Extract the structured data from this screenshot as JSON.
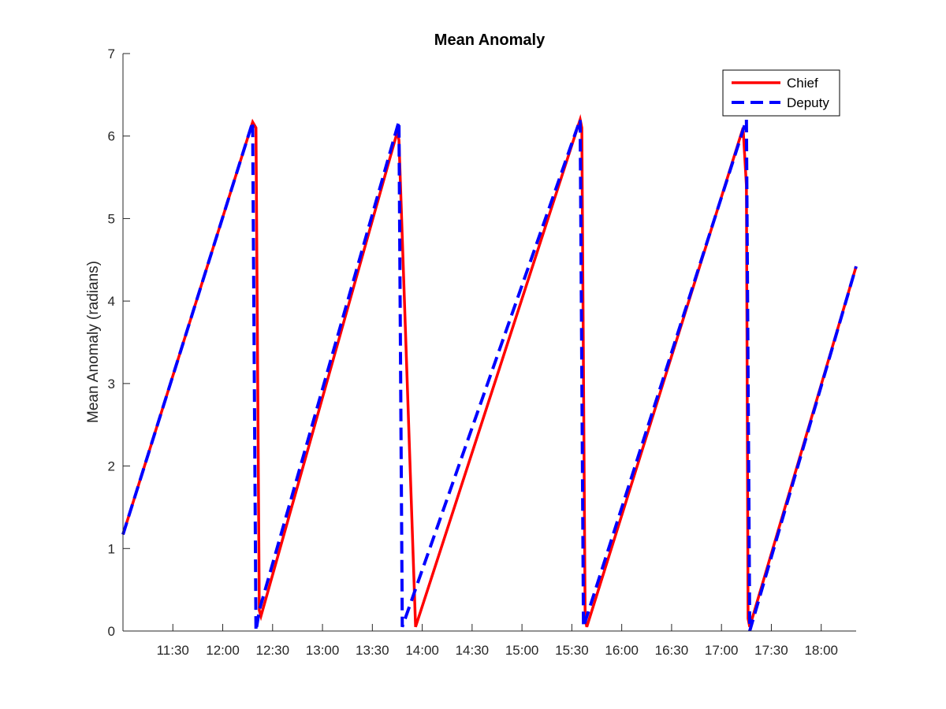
{
  "chart_data": {
    "type": "line",
    "title": "Mean Anomaly",
    "xlabel": "",
    "ylabel": "Mean Anomaly (radians)",
    "x_unit": "time of day (HH:MM)",
    "xlim": [
      "11:00",
      "18:21"
    ],
    "ylim": [
      0,
      7
    ],
    "x_ticks": [
      "11:30",
      "12:00",
      "12:30",
      "13:00",
      "13:30",
      "14:00",
      "14:30",
      "15:00",
      "15:30",
      "16:00",
      "16:30",
      "17:00",
      "17:30",
      "18:00"
    ],
    "y_ticks": [
      0,
      1,
      2,
      3,
      4,
      5,
      6,
      7
    ],
    "grid": false,
    "legend_position": "top-right",
    "series": [
      {
        "name": "Chief",
        "color": "#ff0000",
        "style": "solid",
        "points": [
          [
            "11:00",
            1.17
          ],
          [
            "12:18",
            6.17
          ],
          [
            "12:20",
            6.1
          ],
          [
            "12:22",
            0.25
          ],
          [
            "12:23",
            0.18
          ],
          [
            "13:45",
            6.05
          ],
          [
            "13:46",
            5.95
          ],
          [
            "13:56",
            0.05
          ],
          [
            "15:35",
            6.2
          ],
          [
            "15:36",
            6.1
          ],
          [
            "15:38",
            0.15
          ],
          [
            "15:39",
            0.05
          ],
          [
            "17:13",
            6.1
          ],
          [
            "17:15",
            5.4
          ],
          [
            "17:16",
            0.15
          ],
          [
            "17:17",
            0.05
          ],
          [
            "18:21",
            4.42
          ]
        ]
      },
      {
        "name": "Deputy",
        "color": "#0000ff",
        "style": "dashed",
        "points": [
          [
            "11:00",
            1.17
          ],
          [
            "12:18",
            6.17
          ],
          [
            "12:20",
            0.0
          ],
          [
            "12:22",
            0.25
          ],
          [
            "13:46",
            6.18
          ],
          [
            "13:48",
            0.05
          ],
          [
            "15:35",
            6.2
          ],
          [
            "15:37",
            0.05
          ],
          [
            "17:15",
            6.2
          ],
          [
            "17:17",
            0.0
          ],
          [
            "18:21",
            4.42
          ]
        ]
      }
    ]
  }
}
